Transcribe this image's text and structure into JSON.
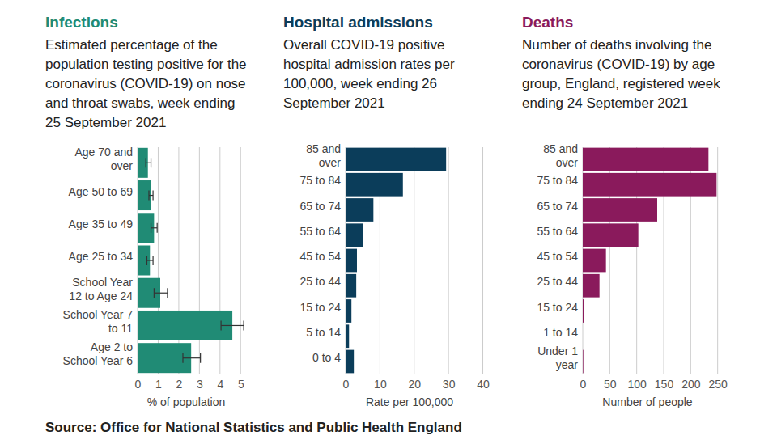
{
  "source": "Source: Office for National Statistics and Public Health England",
  "chart_data": [
    {
      "type": "bar",
      "orientation": "horizontal",
      "grid": true,
      "title": "Infections",
      "subtitle": "Estimated percentage of the population testing positive for the coronavirus (COVID-19) on nose and throat swabs, week ending 25 September 2021",
      "xlabel": "% of population",
      "categories": [
        "Age 70 and over",
        "Age 50 to 69",
        "Age 35 to 49",
        "Age 25 to 34",
        "School Year 12 to Age 24",
        "School Year 7 to 11",
        "Age 2 to School Year 6"
      ],
      "values": [
        0.5,
        0.65,
        0.8,
        0.6,
        1.1,
        4.6,
        2.6
      ],
      "error_lower": [
        0.4,
        0.55,
        0.65,
        0.45,
        0.8,
        4.05,
        2.2
      ],
      "error_upper": [
        0.65,
        0.75,
        0.95,
        0.75,
        1.45,
        5.15,
        3.05
      ],
      "color": "#208b75",
      "xlim": [
        0,
        5.5
      ],
      "xticks": [
        0,
        1,
        2,
        3,
        4,
        5
      ]
    },
    {
      "type": "bar",
      "orientation": "horizontal",
      "grid": true,
      "title": "Hospital admissions",
      "subtitle": "Overall COVID-19 positive hospital admission rates per 100,000, week ending 26 September 2021",
      "xlabel": "Rate per 100,000",
      "categories": [
        "85 and over",
        "75 to 84",
        "65 to 74",
        "55 to 64",
        "45 to 54",
        "25 to 44",
        "15 to 24",
        "5 to 14",
        "0 to 4"
      ],
      "values": [
        29.3,
        16.7,
        8.1,
        5.0,
        3.3,
        3.1,
        1.7,
        1.0,
        2.4
      ],
      "color": "#0b3d5a",
      "xlim": [
        0,
        42
      ],
      "xticks": [
        0,
        10,
        20,
        30,
        40
      ]
    },
    {
      "type": "bar",
      "orientation": "horizontal",
      "grid": true,
      "title": "Deaths",
      "subtitle": "Number of deaths involving the coronavirus (COVID-19) by age group, England, registered week ending 24 September 2021",
      "xlabel": "Number of people",
      "categories": [
        "85 and over",
        "75 to 84",
        "65 to 74",
        "55 to 64",
        "45 to 54",
        "25 to 44",
        "15 to 24",
        "1 to 14",
        "Under 1 year"
      ],
      "values": [
        233,
        248,
        138,
        103,
        43,
        31,
        2,
        0,
        1
      ],
      "color": "#8a1a5c",
      "xlim": [
        0,
        270
      ],
      "xticks": [
        0,
        50,
        100,
        150,
        200,
        250
      ]
    }
  ]
}
